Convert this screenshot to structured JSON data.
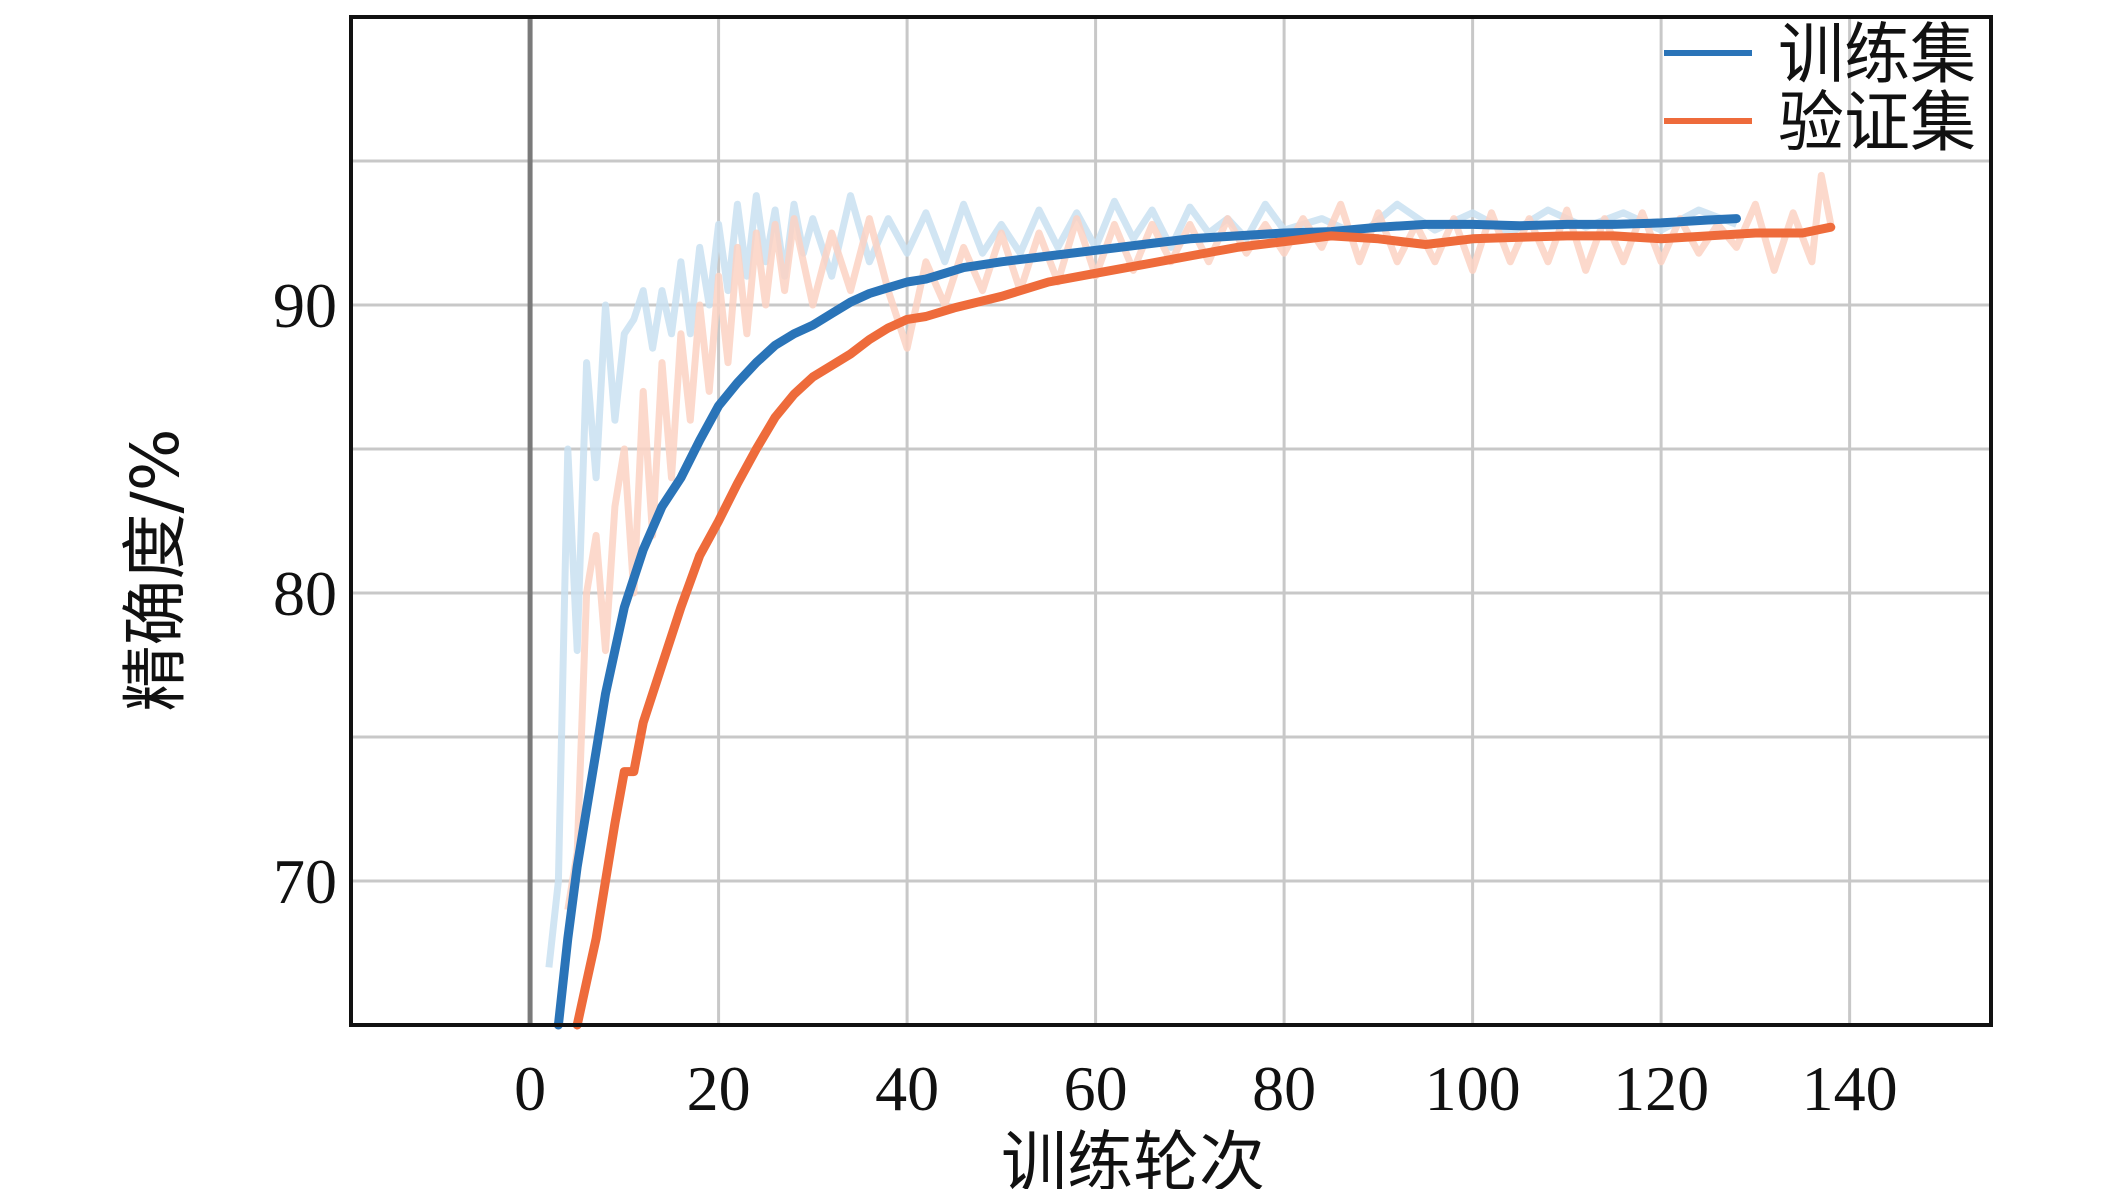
{
  "chart_data": {
    "type": "line",
    "title": "",
    "xlabel": "训练轮次",
    "ylabel": "精确度/%",
    "xlim": [
      -19,
      155
    ],
    "ylim": [
      65,
      100
    ],
    "xticks": [
      0,
      20,
      40,
      60,
      80,
      100,
      120,
      140
    ],
    "yticks": [
      70,
      80,
      90
    ],
    "grid": true,
    "legend_position": "top-right",
    "series": [
      {
        "name": "训练集",
        "color": "#2a74b8",
        "raw_color": "#c9e0f1",
        "smoothed": [
          [
            3,
            65
          ],
          [
            4,
            68
          ],
          [
            5,
            70.5
          ],
          [
            6,
            72.5
          ],
          [
            7,
            74.5
          ],
          [
            8,
            76.5
          ],
          [
            9,
            78
          ],
          [
            10,
            79.5
          ],
          [
            12,
            81.5
          ],
          [
            14,
            83
          ],
          [
            16,
            84
          ],
          [
            18,
            85.3
          ],
          [
            20,
            86.5
          ],
          [
            22,
            87.3
          ],
          [
            24,
            88
          ],
          [
            26,
            88.6
          ],
          [
            28,
            89
          ],
          [
            30,
            89.3
          ],
          [
            32,
            89.7
          ],
          [
            34,
            90.1
          ],
          [
            36,
            90.4
          ],
          [
            38,
            90.6
          ],
          [
            40,
            90.8
          ],
          [
            42,
            90.9
          ],
          [
            44,
            91.1
          ],
          [
            46,
            91.3
          ],
          [
            48,
            91.4
          ],
          [
            50,
            91.5
          ],
          [
            55,
            91.7
          ],
          [
            60,
            91.9
          ],
          [
            65,
            92.1
          ],
          [
            70,
            92.3
          ],
          [
            75,
            92.4
          ],
          [
            80,
            92.5
          ],
          [
            85,
            92.55
          ],
          [
            90,
            92.7
          ],
          [
            95,
            92.8
          ],
          [
            100,
            92.8
          ],
          [
            105,
            92.75
          ],
          [
            110,
            92.8
          ],
          [
            115,
            92.8
          ],
          [
            120,
            92.85
          ],
          [
            125,
            92.95
          ],
          [
            128,
            93.0
          ]
        ],
        "raw": [
          [
            2,
            67
          ],
          [
            3,
            70
          ],
          [
            4,
            85
          ],
          [
            5,
            78
          ],
          [
            6,
            88
          ],
          [
            7,
            84
          ],
          [
            8,
            90
          ],
          [
            9,
            86
          ],
          [
            10,
            89
          ],
          [
            11,
            89.5
          ],
          [
            12,
            90.5
          ],
          [
            13,
            88.5
          ],
          [
            14,
            90.5
          ],
          [
            15,
            89
          ],
          [
            16,
            91.5
          ],
          [
            17,
            89
          ],
          [
            18,
            92
          ],
          [
            19,
            90
          ],
          [
            20,
            92.8
          ],
          [
            21,
            90.5
          ],
          [
            22,
            93.5
          ],
          [
            23,
            91
          ],
          [
            24,
            93.8
          ],
          [
            25,
            91.5
          ],
          [
            26,
            93.3
          ],
          [
            27,
            91
          ],
          [
            28,
            93.5
          ],
          [
            29,
            91.8
          ],
          [
            30,
            93
          ],
          [
            32,
            91
          ],
          [
            34,
            93.8
          ],
          [
            36,
            91.5
          ],
          [
            38,
            93
          ],
          [
            40,
            91.8
          ],
          [
            42,
            93.2
          ],
          [
            44,
            91.5
          ],
          [
            46,
            93.5
          ],
          [
            48,
            91.8
          ],
          [
            50,
            92.8
          ],
          [
            52,
            91.8
          ],
          [
            54,
            93.3
          ],
          [
            56,
            92
          ],
          [
            58,
            93.2
          ],
          [
            60,
            92
          ],
          [
            62,
            93.6
          ],
          [
            64,
            92.3
          ],
          [
            66,
            93.3
          ],
          [
            68,
            92
          ],
          [
            70,
            93.4
          ],
          [
            72,
            92.5
          ],
          [
            74,
            93
          ],
          [
            76,
            92.3
          ],
          [
            78,
            93.5
          ],
          [
            80,
            92.6
          ],
          [
            84,
            93
          ],
          [
            88,
            92.4
          ],
          [
            92,
            93.5
          ],
          [
            96,
            92.6
          ],
          [
            100,
            93.2
          ],
          [
            104,
            92.5
          ],
          [
            108,
            93.3
          ],
          [
            112,
            92.7
          ],
          [
            116,
            93.2
          ],
          [
            120,
            92.6
          ],
          [
            124,
            93.3
          ],
          [
            128,
            92.8
          ]
        ]
      },
      {
        "name": "验证集",
        "color": "#ee6b3b",
        "raw_color": "#fbd2c3",
        "smoothed": [
          [
            5,
            65
          ],
          [
            6,
            66.5
          ],
          [
            7,
            68
          ],
          [
            8,
            70
          ],
          [
            9,
            72
          ],
          [
            10,
            73.8
          ],
          [
            11,
            73.8
          ],
          [
            12,
            75.5
          ],
          [
            14,
            77.5
          ],
          [
            16,
            79.5
          ],
          [
            18,
            81.3
          ],
          [
            20,
            82.5
          ],
          [
            22,
            83.8
          ],
          [
            24,
            85
          ],
          [
            26,
            86.1
          ],
          [
            28,
            86.9
          ],
          [
            30,
            87.5
          ],
          [
            32,
            87.9
          ],
          [
            34,
            88.3
          ],
          [
            36,
            88.8
          ],
          [
            38,
            89.2
          ],
          [
            40,
            89.5
          ],
          [
            42,
            89.6
          ],
          [
            45,
            89.9
          ],
          [
            50,
            90.3
          ],
          [
            55,
            90.8
          ],
          [
            60,
            91.1
          ],
          [
            65,
            91.4
          ],
          [
            70,
            91.7
          ],
          [
            75,
            92
          ],
          [
            80,
            92.2
          ],
          [
            85,
            92.4
          ],
          [
            90,
            92.3
          ],
          [
            95,
            92.1
          ],
          [
            100,
            92.3
          ],
          [
            105,
            92.35
          ],
          [
            110,
            92.4
          ],
          [
            115,
            92.4
          ],
          [
            120,
            92.3
          ],
          [
            125,
            92.4
          ],
          [
            130,
            92.5
          ],
          [
            135,
            92.5
          ],
          [
            138,
            92.7
          ]
        ],
        "raw": [
          [
            4,
            69
          ],
          [
            5,
            71
          ],
          [
            6,
            80
          ],
          [
            7,
            82
          ],
          [
            8,
            78
          ],
          [
            9,
            83
          ],
          [
            10,
            85
          ],
          [
            11,
            80
          ],
          [
            12,
            87
          ],
          [
            13,
            82
          ],
          [
            14,
            88
          ],
          [
            15,
            84
          ],
          [
            16,
            89
          ],
          [
            17,
            86
          ],
          [
            18,
            90
          ],
          [
            19,
            87
          ],
          [
            20,
            91
          ],
          [
            21,
            88
          ],
          [
            22,
            92
          ],
          [
            23,
            89
          ],
          [
            24,
            92.5
          ],
          [
            25,
            90
          ],
          [
            26,
            92.8
          ],
          [
            27,
            90.5
          ],
          [
            28,
            93
          ],
          [
            30,
            90
          ],
          [
            32,
            92.5
          ],
          [
            34,
            90.5
          ],
          [
            36,
            93
          ],
          [
            38,
            90.5
          ],
          [
            40,
            88.5
          ],
          [
            42,
            91.5
          ],
          [
            44,
            90
          ],
          [
            46,
            92
          ],
          [
            48,
            90.5
          ],
          [
            50,
            92.5
          ],
          [
            52,
            90.5
          ],
          [
            54,
            92.5
          ],
          [
            56,
            90.8
          ],
          [
            58,
            93
          ],
          [
            60,
            91
          ],
          [
            62,
            92.8
          ],
          [
            64,
            91.2
          ],
          [
            66,
            92.8
          ],
          [
            68,
            91.5
          ],
          [
            70,
            92.8
          ],
          [
            72,
            91.5
          ],
          [
            74,
            93
          ],
          [
            76,
            91.8
          ],
          [
            78,
            92.8
          ],
          [
            80,
            91.8
          ],
          [
            82,
            93
          ],
          [
            84,
            92
          ],
          [
            86,
            93.5
          ],
          [
            88,
            91.5
          ],
          [
            90,
            93.2
          ],
          [
            92,
            91.5
          ],
          [
            94,
            92.8
          ],
          [
            96,
            91.5
          ],
          [
            98,
            93
          ],
          [
            100,
            91.2
          ],
          [
            102,
            93.2
          ],
          [
            104,
            91.5
          ],
          [
            106,
            93
          ],
          [
            108,
            91.5
          ],
          [
            110,
            93.3
          ],
          [
            112,
            91.2
          ],
          [
            114,
            93
          ],
          [
            116,
            91.5
          ],
          [
            118,
            93.2
          ],
          [
            120,
            91.5
          ],
          [
            122,
            93
          ],
          [
            124,
            91.8
          ],
          [
            126,
            92.8
          ],
          [
            128,
            92
          ],
          [
            130,
            93.5
          ],
          [
            132,
            91.2
          ],
          [
            134,
            93.2
          ],
          [
            136,
            91.5
          ],
          [
            137,
            94.5
          ],
          [
            138,
            92.8
          ]
        ]
      }
    ]
  }
}
